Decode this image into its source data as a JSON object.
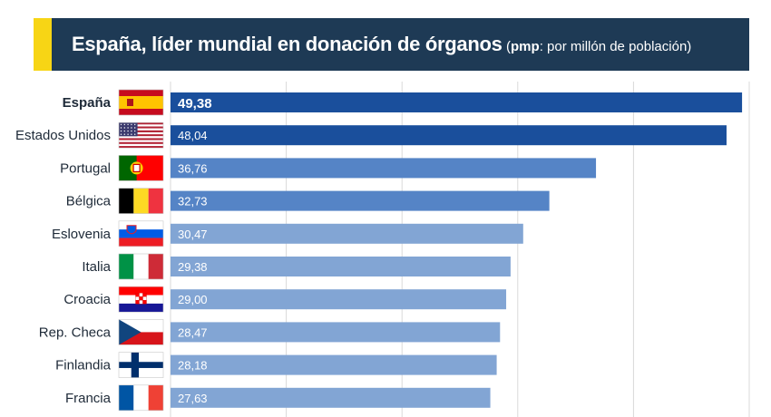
{
  "header": {
    "title": "España, líder mundial en donación de órganos",
    "note_abbr": "pmp",
    "note_text": ": por millón de población"
  },
  "colors": {
    "header_bg": "#1e3a55",
    "accent": "#f7d515",
    "bar_dark": "#1a4f9c",
    "bar_mid": "#5584c6",
    "bar_light": "#82a5d4",
    "grid": "#d9d9d9"
  },
  "chart_data": {
    "type": "bar",
    "orientation": "horizontal",
    "title": "España, líder mundial en donación de órganos",
    "unit": "pmp",
    "categories": [
      "España",
      "Estados Unidos",
      "Portugal",
      "Bélgica",
      "Eslovenia",
      "Italia",
      "Croacia",
      "Rep. Checa",
      "Finlandia",
      "Francia"
    ],
    "values": [
      49.38,
      48.04,
      36.76,
      32.73,
      30.47,
      29.38,
      29.0,
      28.47,
      28.18,
      27.63
    ],
    "value_labels": [
      "49,38",
      "48,04",
      "36,76",
      "32,73",
      "30,47",
      "29,38",
      "29,00",
      "28,47",
      "28,18",
      "27,63"
    ],
    "flags": [
      "spain-flag-icon",
      "usa-flag-icon",
      "portugal-flag-icon",
      "belgium-flag-icon",
      "slovenia-flag-icon",
      "italy-flag-icon",
      "croatia-flag-icon",
      "czech-flag-icon",
      "finland-flag-icon",
      "france-flag-icon"
    ],
    "xlim": [
      0,
      50
    ],
    "grid": true,
    "highlight": "España"
  }
}
